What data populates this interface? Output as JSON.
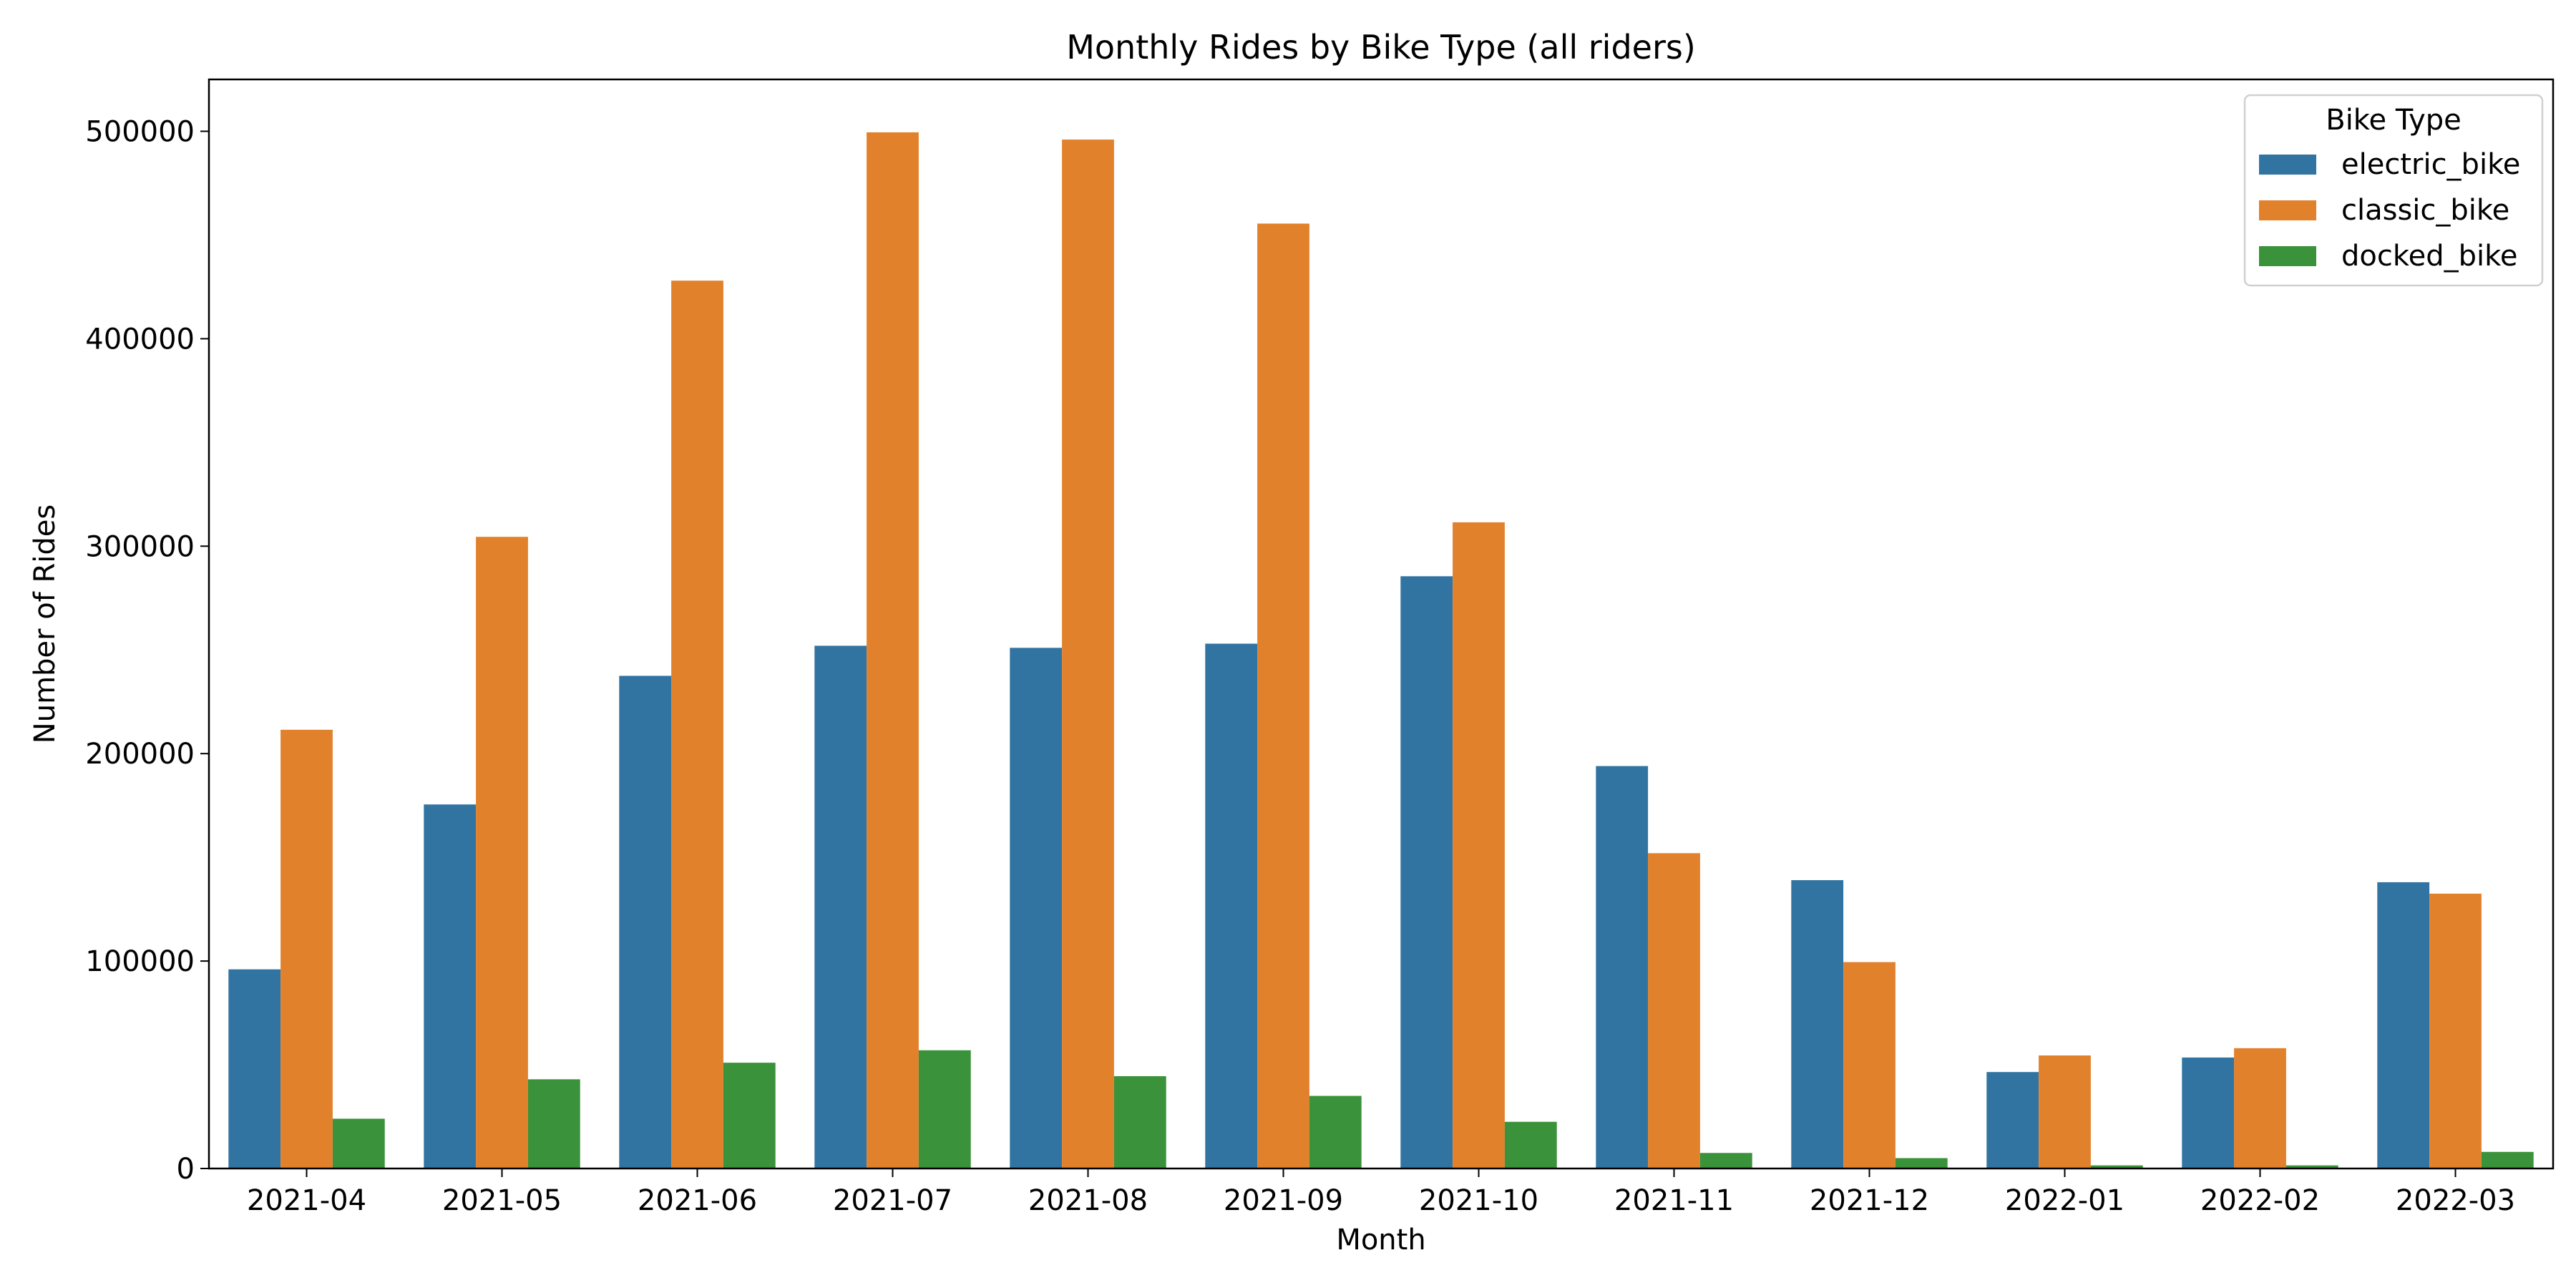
{
  "chart_data": {
    "type": "bar",
    "title": "Monthly Rides by Bike Type (all riders)",
    "xlabel": "Month",
    "ylabel": "Number of Rides",
    "ylim": [
      0,
      525000
    ],
    "yticks": [
      0,
      100000,
      200000,
      300000,
      400000,
      500000
    ],
    "ytick_labels": [
      "0",
      "100000",
      "200000",
      "300000",
      "400000",
      "500000"
    ],
    "grid": false,
    "legend": {
      "title": "Bike Type",
      "position": "top-right"
    },
    "categories": [
      "2021-04",
      "2021-05",
      "2021-06",
      "2021-07",
      "2021-08",
      "2021-09",
      "2021-10",
      "2021-11",
      "2021-12",
      "2022-01",
      "2022-02",
      "2022-03"
    ],
    "series": [
      {
        "name": "electric_bike",
        "color": "#3274a1",
        "values": [
          96000,
          175500,
          237500,
          252000,
          251000,
          253000,
          285500,
          194000,
          139000,
          46500,
          53500,
          138000
        ]
      },
      {
        "name": "classic_bike",
        "color": "#e1812c",
        "values": [
          211500,
          304500,
          428000,
          499500,
          496000,
          455500,
          311500,
          152000,
          99500,
          54500,
          58000,
          132500
        ]
      },
      {
        "name": "docked_bike",
        "color": "#3a923a",
        "values": [
          24000,
          43000,
          51000,
          57000,
          44500,
          35000,
          22500,
          7500,
          5000,
          1500,
          1500,
          8000
        ]
      }
    ]
  }
}
